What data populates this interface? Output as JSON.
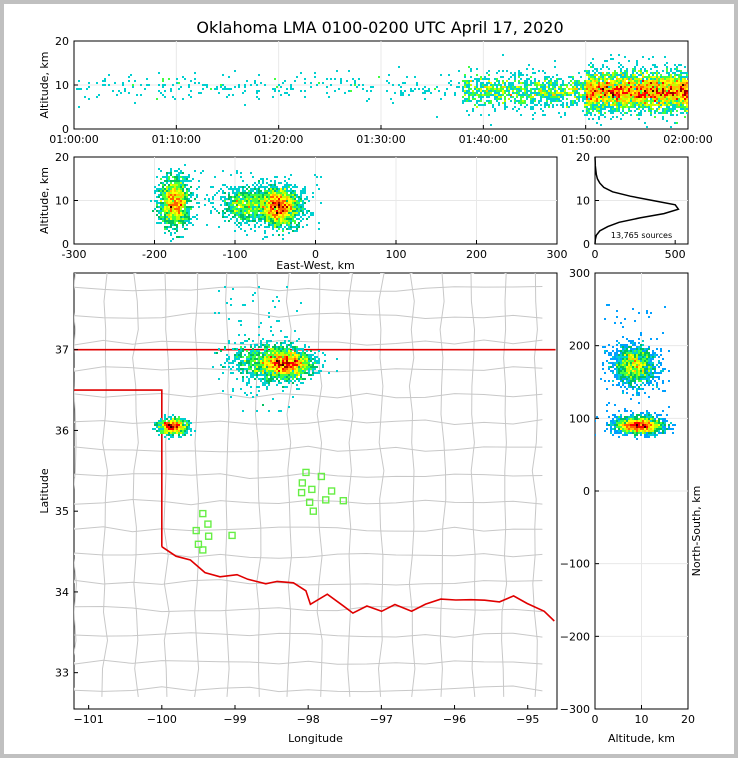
{
  "title": "Oklahoma LMA 0100-0200 UTC April 17, 2020",
  "colors": {
    "state_border": "#e00000",
    "county_lines": "#c8c8c8",
    "stations": "#66ee44",
    "background": "#c0c0c0"
  },
  "chart_data": [
    {
      "type": "scatter",
      "panel": "altitude-vs-time",
      "xlabel": "",
      "ylabel": "Altitude, km",
      "x_ticks": [
        "01:00:00",
        "01:10:00",
        "01:20:00",
        "01:30:00",
        "01:40:00",
        "01:50:00",
        "02:00:00"
      ],
      "y_ticks": [
        "0",
        "10",
        "20"
      ],
      "xlim": [
        "01:00:00",
        "02:00:00"
      ],
      "ylim": [
        0,
        20
      ],
      "grid": true,
      "clusters": [
        {
          "x_start_min": 0,
          "x_end_min": 60,
          "alt_center": 9.5,
          "alt_spread": 1.8,
          "density": "low"
        },
        {
          "x_start_min": 38,
          "x_end_min": 60,
          "alt_center": 8.5,
          "alt_spread": 2.2,
          "density": "medium"
        },
        {
          "x_start_min": 50,
          "x_end_min": 60,
          "alt_center": 8.5,
          "alt_spread": 2.5,
          "density": "high"
        }
      ]
    },
    {
      "type": "heatmap",
      "panel": "altitude-vs-east-west",
      "xlabel": "East-West, km",
      "ylabel": "Altitude, km",
      "x_ticks": [
        "-300",
        "-200",
        "-100",
        "0",
        "100",
        "200",
        "300"
      ],
      "y_ticks": [
        "0",
        "10",
        "20"
      ],
      "xlim": [
        -300,
        300
      ],
      "ylim": [
        0,
        20
      ],
      "grid": true,
      "clusters": [
        {
          "x_center": -175,
          "x_spread": 9,
          "alt_center": 9.5,
          "alt_spread": 2.8
        },
        {
          "x_center": -45,
          "x_spread": 13,
          "alt_center": 8.5,
          "alt_spread": 2.2
        },
        {
          "x_center": -88,
          "x_spread": 14,
          "alt_center": 9,
          "alt_spread": 2.0
        }
      ]
    },
    {
      "type": "line",
      "panel": "altitude-histogram",
      "x_ticks": [
        "0",
        "500"
      ],
      "y_ticks": [
        "0",
        "10",
        "20"
      ],
      "xlim": [
        0,
        580
      ],
      "ylim": [
        0,
        20
      ],
      "annotation": "13,765 sources",
      "altitude": [
        0,
        1,
        2,
        3,
        4,
        5,
        6,
        7,
        8,
        9,
        10,
        11,
        12,
        13,
        14,
        15,
        16,
        17,
        18,
        19,
        20
      ],
      "count": [
        0,
        2,
        8,
        30,
        80,
        150,
        280,
        430,
        520,
        500,
        360,
        220,
        110,
        55,
        30,
        15,
        8,
        5,
        2,
        1,
        0
      ]
    },
    {
      "type": "heatmap",
      "panel": "plan-view",
      "xlabel": "Longitude",
      "ylabel": "Latitude",
      "x_ticks": [
        "-101",
        "-100",
        "-99",
        "-98",
        "-97",
        "-96",
        "-95"
      ],
      "y_ticks": [
        "33",
        "34",
        "35",
        "36",
        "37"
      ],
      "xlim": [
        -101.2,
        -94.6
      ],
      "ylim": [
        32.55,
        37.95
      ],
      "clusters": [
        {
          "lon_center": -98.3,
          "lon_spread": 0.18,
          "lat_center": 36.82,
          "lat_spread": 0.09
        },
        {
          "lon_center": -98.6,
          "lon_spread": 0.25,
          "lat_center": 36.85,
          "lat_spread": 0.12
        },
        {
          "lon_center": -99.85,
          "lon_spread": 0.1,
          "lat_center": 36.05,
          "lat_spread": 0.05
        }
      ],
      "stations": [
        {
          "lon": -98.03,
          "lat": 35.48
        },
        {
          "lon": -97.82,
          "lat": 35.43
        },
        {
          "lon": -98.08,
          "lat": 35.35
        },
        {
          "lon": -97.95,
          "lat": 35.27
        },
        {
          "lon": -97.68,
          "lat": 35.25
        },
        {
          "lon": -98.09,
          "lat": 35.23
        },
        {
          "lon": -97.98,
          "lat": 35.11
        },
        {
          "lon": -97.76,
          "lat": 35.14
        },
        {
          "lon": -97.52,
          "lat": 35.13
        },
        {
          "lon": -97.93,
          "lat": 35.0
        },
        {
          "lon": -99.44,
          "lat": 34.97
        },
        {
          "lon": -99.37,
          "lat": 34.84
        },
        {
          "lon": -99.53,
          "lat": 34.76
        },
        {
          "lon": -99.36,
          "lat": 34.69
        },
        {
          "lon": -99.04,
          "lat": 34.7
        },
        {
          "lon": -99.5,
          "lat": 34.59
        },
        {
          "lon": -99.44,
          "lat": 34.52
        }
      ]
    },
    {
      "type": "heatmap",
      "panel": "north-south-vs-altitude",
      "xlabel": "Altitude, km",
      "ylabel": "North-South, km",
      "x_ticks": [
        "0",
        "10",
        "20"
      ],
      "y_ticks": [
        "300",
        "200",
        "100",
        "0",
        "−100",
        "−200",
        "−300"
      ],
      "xlim": [
        0,
        20
      ],
      "ylim": [
        -300,
        300
      ],
      "grid": true,
      "clusters": [
        {
          "alt_center": 8.5,
          "alt_spread": 2.2,
          "ns_center": 173,
          "ns_spread": 14
        },
        {
          "alt_center": 9.5,
          "alt_spread": 2.5,
          "ns_center": 90,
          "ns_spread": 6
        }
      ]
    }
  ]
}
